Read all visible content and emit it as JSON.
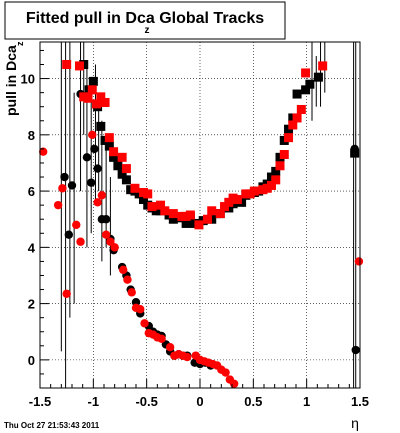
{
  "chart_data": {
    "type": "scatter",
    "title": "Fitted pull in Dca",
    "title_subscript": "z",
    "title_suffix": " Global Tracks",
    "ylabel": "pull in Dca",
    "ylabel_subscript": "z",
    "xlabel": "η",
    "xlim": [
      -1.5,
      1.5
    ],
    "ylim": [
      -1.0,
      11.3
    ],
    "x_ticks": [
      -1.5,
      -1,
      -0.5,
      0,
      0.5,
      1,
      1.5
    ],
    "x_tick_labels": [
      "-1.5",
      "-1",
      "-0.5",
      "0",
      "0.5",
      "1",
      "1.5"
    ],
    "y_ticks": [
      0,
      2,
      4,
      6,
      8,
      10
    ],
    "y_tick_labels": [
      "0",
      "2",
      "4",
      "6",
      "8",
      "10"
    ],
    "grid": true,
    "colors": {
      "black": "#000000",
      "red": "#ff0000"
    },
    "timestamp": "Thu Oct 27 21:53:43 2011",
    "series": [
      {
        "color": "#000000",
        "markers": [
          "square",
          "circle"
        ],
        "points": [
          [
            -1.27,
            6.5,
            "circle"
          ],
          [
            -1.23,
            4.45,
            "circle"
          ],
          [
            -1.2,
            6.2,
            "circle"
          ],
          [
            -1.12,
            9.45,
            "circle"
          ],
          [
            -1.06,
            7.2,
            "circle"
          ],
          [
            -1.02,
            6.3,
            "circle"
          ],
          [
            -0.99,
            7.5,
            "circle"
          ],
          [
            -0.96,
            6.8,
            "circle"
          ],
          [
            -0.92,
            5.0,
            "circle"
          ],
          [
            -0.88,
            5.0,
            "circle"
          ],
          [
            -0.84,
            4.3,
            "circle"
          ],
          [
            -0.81,
            3.9,
            "circle"
          ],
          [
            -0.73,
            3.3,
            "circle"
          ],
          [
            -0.69,
            3.0,
            "circle"
          ],
          [
            -0.65,
            2.5,
            "circle"
          ],
          [
            -0.6,
            2.05,
            "circle"
          ],
          [
            -0.56,
            1.65,
            "circle"
          ],
          [
            -0.48,
            1.2,
            "circle"
          ],
          [
            -0.44,
            1.0,
            "circle"
          ],
          [
            -0.4,
            0.9,
            "circle"
          ],
          [
            -0.36,
            0.85,
            "circle"
          ],
          [
            -0.32,
            0.55,
            "circle"
          ],
          [
            -0.28,
            0.3,
            "circle"
          ],
          [
            -0.24,
            0.15,
            "circle"
          ],
          [
            -0.2,
            0.2,
            "circle"
          ],
          [
            -0.16,
            0.15,
            "circle"
          ],
          [
            -0.12,
            0.15,
            "circle"
          ],
          [
            -0.05,
            -0.1,
            "circle"
          ],
          [
            0.0,
            -0.15,
            "circle"
          ],
          [
            0.05,
            -0.1,
            "circle"
          ],
          [
            0.1,
            -0.2,
            "circle"
          ],
          [
            1.45,
            7.5,
            "circle"
          ],
          [
            1.46,
            0.35,
            "circle"
          ],
          [
            -1.09,
            10.5,
            "square"
          ],
          [
            -1.04,
            9.6,
            "square"
          ],
          [
            -1.0,
            9.9,
            "square"
          ],
          [
            -0.96,
            9.0,
            "square"
          ],
          [
            -0.93,
            8.3,
            "square"
          ],
          [
            -0.89,
            7.8,
            "square"
          ],
          [
            -0.85,
            7.6,
            "square"
          ],
          [
            -0.81,
            7.2,
            "square"
          ],
          [
            -0.77,
            6.9,
            "square"
          ],
          [
            -0.73,
            6.6,
            "square"
          ],
          [
            -0.69,
            6.4,
            "square"
          ],
          [
            -0.65,
            6.05,
            "square"
          ],
          [
            -0.61,
            6.0,
            "square"
          ],
          [
            -0.57,
            5.9,
            "square"
          ],
          [
            -0.53,
            5.7,
            "square"
          ],
          [
            -0.49,
            5.5,
            "square"
          ],
          [
            -0.45,
            5.4,
            "square"
          ],
          [
            -0.41,
            5.3,
            "square"
          ],
          [
            -0.37,
            5.3,
            "square"
          ],
          [
            -0.29,
            5.15,
            "square"
          ],
          [
            -0.25,
            5.0,
            "square"
          ],
          [
            -0.21,
            5.05,
            "square"
          ],
          [
            -0.13,
            4.85,
            "square"
          ],
          [
            -0.09,
            5.05,
            "square"
          ],
          [
            -0.05,
            4.85,
            "square"
          ],
          [
            0.03,
            4.95,
            "square"
          ],
          [
            0.11,
            5.0,
            "square"
          ],
          [
            0.15,
            5.2,
            "square"
          ],
          [
            0.19,
            5.2,
            "square"
          ],
          [
            0.27,
            5.4,
            "square"
          ],
          [
            0.31,
            5.55,
            "square"
          ],
          [
            0.39,
            5.6,
            "square"
          ],
          [
            0.43,
            5.85,
            "square"
          ],
          [
            0.51,
            5.95,
            "square"
          ],
          [
            0.55,
            6.0,
            "square"
          ],
          [
            0.59,
            6.15,
            "square"
          ],
          [
            0.63,
            6.25,
            "square"
          ],
          [
            0.67,
            6.5,
            "square"
          ],
          [
            0.71,
            6.7,
            "square"
          ],
          [
            0.75,
            7.2,
            "square"
          ],
          [
            0.79,
            7.8,
            "square"
          ],
          [
            0.83,
            8.2,
            "square"
          ],
          [
            0.87,
            8.6,
            "square"
          ],
          [
            0.91,
            9.45,
            "square"
          ],
          [
            0.99,
            9.6,
            "square"
          ],
          [
            1.03,
            9.8,
            "square"
          ],
          [
            1.11,
            10.05,
            "square"
          ],
          [
            1.45,
            7.35,
            "square"
          ]
        ]
      },
      {
        "color": "#ff0000",
        "markers": [
          "square",
          "circle"
        ],
        "points": [
          [
            -1.47,
            7.4,
            "circle"
          ],
          [
            -1.33,
            5.5,
            "circle"
          ],
          [
            -1.29,
            6.1,
            "circle"
          ],
          [
            -1.25,
            2.35,
            "circle"
          ],
          [
            -1.16,
            4.8,
            "circle"
          ],
          [
            -1.12,
            4.2,
            "circle"
          ],
          [
            -1.01,
            8.0,
            "circle"
          ],
          [
            -0.96,
            5.6,
            "circle"
          ],
          [
            -0.92,
            5.85,
            "circle"
          ],
          [
            -0.88,
            4.45,
            "circle"
          ],
          [
            -0.84,
            4.2,
            "circle"
          ],
          [
            -0.8,
            4.0,
            "circle"
          ],
          [
            -0.72,
            3.2,
            "circle"
          ],
          [
            -0.68,
            2.85,
            "circle"
          ],
          [
            -0.64,
            2.4,
            "circle"
          ],
          [
            -0.6,
            1.85,
            "circle"
          ],
          [
            -0.56,
            1.8,
            "circle"
          ],
          [
            -0.52,
            1.3,
            "circle"
          ],
          [
            -0.48,
            0.95,
            "circle"
          ],
          [
            -0.44,
            0.9,
            "circle"
          ],
          [
            -0.4,
            0.8,
            "circle"
          ],
          [
            -0.36,
            0.75,
            "circle"
          ],
          [
            -0.28,
            0.45,
            "circle"
          ],
          [
            -0.24,
            0.15,
            "circle"
          ],
          [
            -0.2,
            0.2,
            "circle"
          ],
          [
            -0.16,
            0.15,
            "circle"
          ],
          [
            -0.12,
            0.1,
            "circle"
          ],
          [
            -0.04,
            0.15,
            "circle"
          ],
          [
            0.0,
            0.0,
            "circle"
          ],
          [
            0.04,
            -0.05,
            "circle"
          ],
          [
            0.08,
            -0.1,
            "circle"
          ],
          [
            0.12,
            -0.15,
            "circle"
          ],
          [
            0.16,
            -0.2,
            "circle"
          ],
          [
            0.2,
            -0.35,
            "circle"
          ],
          [
            0.24,
            -0.45,
            "circle"
          ],
          [
            0.28,
            -0.7,
            "circle"
          ],
          [
            0.32,
            -0.85,
            "circle"
          ],
          [
            1.49,
            3.5,
            "circle"
          ],
          [
            -1.25,
            10.5,
            "square"
          ],
          [
            -1.13,
            10.45,
            "square"
          ],
          [
            -1.09,
            9.35,
            "square"
          ],
          [
            -1.05,
            9.3,
            "square"
          ],
          [
            -1.01,
            9.6,
            "square"
          ],
          [
            -0.97,
            9.1,
            "square"
          ],
          [
            -0.93,
            9.35,
            "square"
          ],
          [
            -0.89,
            9.15,
            "square"
          ],
          [
            -0.85,
            7.9,
            "square"
          ],
          [
            -0.81,
            7.4,
            "square"
          ],
          [
            -0.73,
            7.2,
            "square"
          ],
          [
            -0.69,
            6.8,
            "square"
          ],
          [
            -0.61,
            6.1,
            "square"
          ],
          [
            -0.53,
            5.95,
            "square"
          ],
          [
            -0.49,
            5.9,
            "square"
          ],
          [
            -0.45,
            5.45,
            "square"
          ],
          [
            -0.37,
            5.5,
            "square"
          ],
          [
            -0.33,
            5.3,
            "square"
          ],
          [
            -0.25,
            5.2,
            "square"
          ],
          [
            -0.17,
            5.1,
            "square"
          ],
          [
            -0.13,
            5.1,
            "square"
          ],
          [
            -0.09,
            5.15,
            "square"
          ],
          [
            -0.01,
            4.8,
            "square"
          ],
          [
            0.07,
            5.0,
            "square"
          ],
          [
            0.11,
            5.3,
            "square"
          ],
          [
            0.19,
            5.2,
            "square"
          ],
          [
            0.23,
            5.45,
            "square"
          ],
          [
            0.27,
            5.6,
            "square"
          ],
          [
            0.31,
            5.75,
            "square"
          ],
          [
            0.35,
            5.7,
            "square"
          ],
          [
            0.43,
            5.9,
            "square"
          ],
          [
            0.47,
            5.9,
            "square"
          ],
          [
            0.51,
            6.0,
            "square"
          ],
          [
            0.59,
            6.05,
            "square"
          ],
          [
            0.63,
            6.1,
            "square"
          ],
          [
            0.67,
            6.2,
            "square"
          ],
          [
            0.71,
            6.4,
            "square"
          ],
          [
            0.75,
            6.9,
            "square"
          ],
          [
            0.79,
            7.3,
            "square"
          ],
          [
            0.83,
            7.9,
            "square"
          ],
          [
            0.87,
            8.35,
            "square"
          ],
          [
            0.91,
            8.6,
            "square"
          ],
          [
            0.95,
            8.9,
            "square"
          ],
          [
            0.99,
            10.2,
            "square"
          ],
          [
            1.15,
            10.45,
            "square"
          ]
        ]
      }
    ],
    "error_bars": [
      [
        -1.3,
        0.3,
        11.3
      ],
      [
        -1.26,
        -1.0,
        11.3
      ],
      [
        -1.22,
        1.5,
        11.3
      ],
      [
        -1.18,
        2.0,
        9.5
      ],
      [
        -1.12,
        6.0,
        11.3
      ],
      [
        -1.09,
        8.0,
        11.3
      ],
      [
        -1.06,
        4.0,
        10.5
      ],
      [
        -1.02,
        4.5,
        9.5
      ],
      [
        -0.98,
        5.5,
        10.5
      ],
      [
        -0.95,
        6.0,
        9.5
      ],
      [
        -0.92,
        3.5,
        8.5
      ],
      [
        -0.88,
        4.0,
        7.5
      ],
      [
        -0.84,
        3.0,
        6.5
      ],
      [
        1.05,
        8.5,
        11.3
      ],
      [
        1.09,
        9.0,
        10.8
      ],
      [
        1.13,
        9.0,
        11.3
      ],
      [
        1.17,
        9.5,
        11.3
      ],
      [
        1.44,
        -1.0,
        11.3
      ],
      [
        1.46,
        -1.0,
        11.3
      ]
    ]
  }
}
